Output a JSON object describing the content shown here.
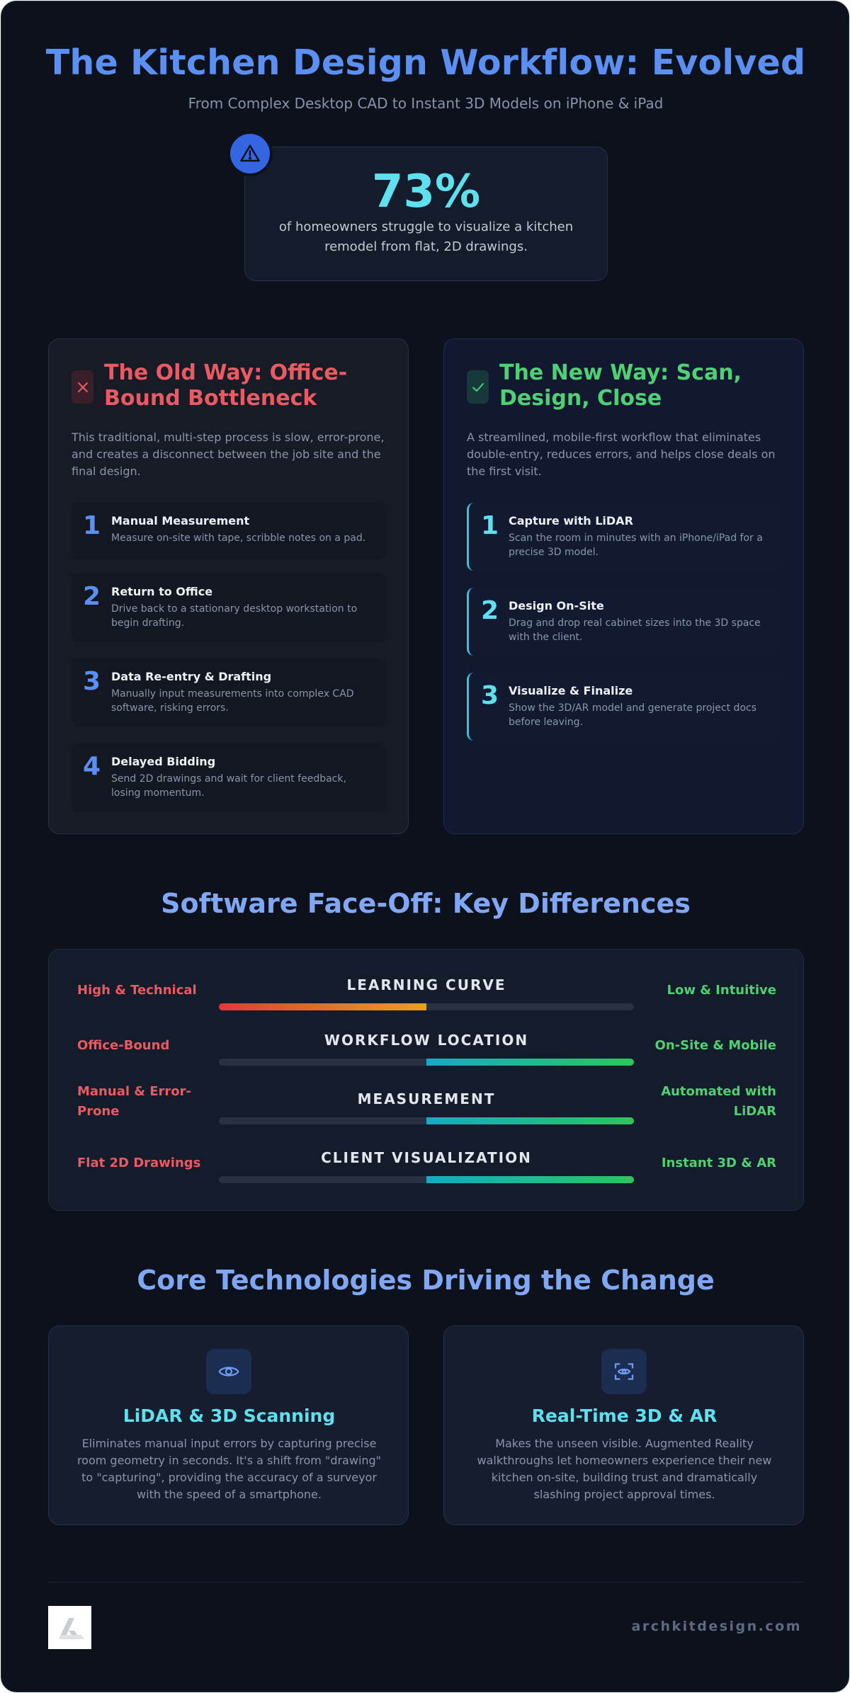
{
  "header": {
    "title": "The Kitchen Design Workflow: Evolved",
    "subtitle": "From Complex Desktop CAD to Instant 3D Models on iPhone & iPad"
  },
  "stat": {
    "icon": "warning-triangle-icon",
    "value": "73%",
    "text": "of homeowners struggle to visualize a kitchen remodel from flat, 2D drawings."
  },
  "old_way": {
    "icon": "x-icon",
    "title": "The Old Way: Office-Bound Bottleneck",
    "description": "This traditional, multi-step process is slow, error-prone, and creates a disconnect between the job site and the final design.",
    "steps": [
      {
        "num": "1",
        "title": "Manual Measurement",
        "desc": "Measure on-site with tape, scribble notes on a pad."
      },
      {
        "num": "2",
        "title": "Return to Office",
        "desc": "Drive back to a stationary desktop workstation to begin drafting."
      },
      {
        "num": "3",
        "title": "Data Re-entry & Drafting",
        "desc": "Manually input measurements into complex CAD software, risking errors."
      },
      {
        "num": "4",
        "title": "Delayed Bidding",
        "desc": "Send 2D drawings and wait for client feedback, losing momentum."
      }
    ]
  },
  "new_way": {
    "icon": "check-icon",
    "title": "The New Way: Scan, Design, Close",
    "description": "A streamlined, mobile-first workflow that eliminates double-entry, reduces errors, and helps close deals on the first visit.",
    "steps": [
      {
        "num": "1",
        "title": "Capture with LiDAR",
        "desc": "Scan the room in minutes with an iPhone/iPad for a precise 3D model."
      },
      {
        "num": "2",
        "title": "Design On-Site",
        "desc": "Drag and drop real cabinet sizes into the 3D space with the client."
      },
      {
        "num": "3",
        "title": "Visualize & Finalize",
        "desc": "Show the 3D/AR model and generate project docs before leaving."
      }
    ]
  },
  "faceoff": {
    "heading": "Software Face-Off: Key Differences",
    "colors": {
      "old": "#ea5a62",
      "new": "#4fd073"
    },
    "rows": [
      {
        "label": "LEARNING CURVE",
        "old": "High & Technical",
        "new": "Low & Intuitive",
        "leans": "old",
        "fill_fraction": 0.5
      },
      {
        "label": "WORKFLOW LOCATION",
        "old": "Office-Bound",
        "new": "On-Site & Mobile",
        "leans": "new",
        "fill_fraction": 0.5
      },
      {
        "label": "MEASUREMENT",
        "old": "Manual & Error-Prone",
        "new": "Automated with LiDAR",
        "leans": "new",
        "fill_fraction": 0.5
      },
      {
        "label": "CLIENT VISUALIZATION",
        "old": "Flat 2D Drawings",
        "new": "Instant 3D & AR",
        "leans": "new",
        "fill_fraction": 0.5
      }
    ]
  },
  "tech": {
    "heading": "Core Technologies Driving the Change",
    "cards": [
      {
        "icon": "eye-icon",
        "title": "LiDAR & 3D Scanning",
        "desc": "Eliminates manual input errors by capturing precise room geometry in seconds. It's a shift from \"drawing\" to \"capturing\", providing the accuracy of a surveyor with the speed of a smartphone."
      },
      {
        "icon": "ar-scan-eye-icon",
        "title": "Real-Time 3D & AR",
        "desc": "Makes the unseen visible. Augmented Reality walkthroughs let homeowners experience their new kitchen on-site, building trust and dramatically slashing project approval times."
      }
    ]
  },
  "footer": {
    "logo_icon": "archkit-logo-icon",
    "site": "archkitdesign.com"
  }
}
